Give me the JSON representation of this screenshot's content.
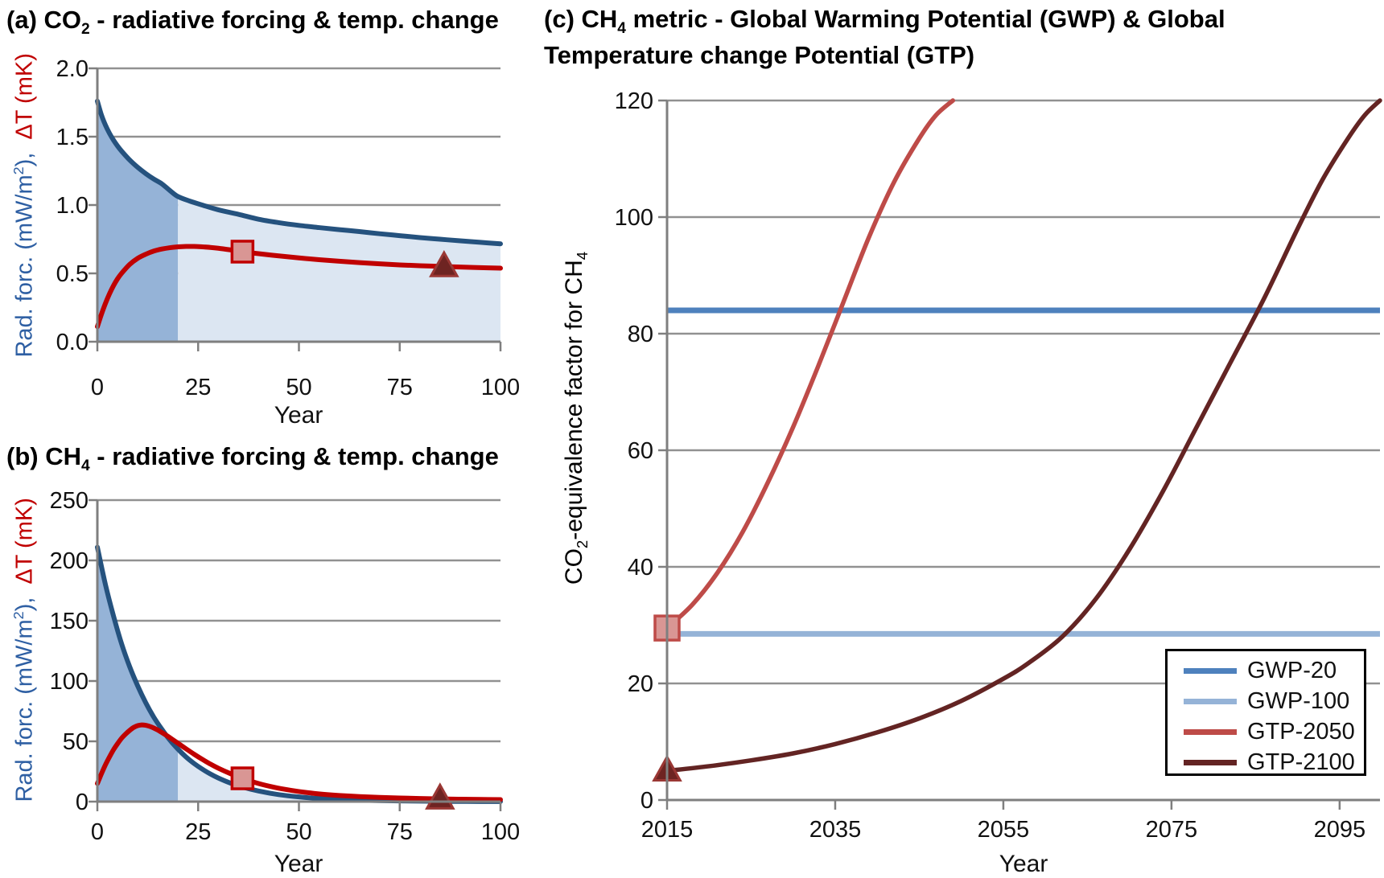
{
  "colors": {
    "navy": "#25527E",
    "red": "#C00000",
    "dark_fill": "#95B3D7",
    "light_fill": "#DCE6F2",
    "gwp20": "#4E81BD",
    "gwp100": "#95B3D7",
    "gtp2050": "#BE4B48",
    "gtp2100": "#632423",
    "grid": "#919191",
    "axis": "#7F7F7F",
    "tick_text": "#111111",
    "ylabel_blue": "#2E5FA3",
    "ylabel_red": "#C00000",
    "square_fill": "#D99694",
    "triangle_fill": "#6E2422",
    "triangle_stroke": "#9A3734"
  },
  "panel_a": {
    "title": {
      "pre": "(a) CO",
      "sub": "2",
      "post": " - radiative forcing & temp. change"
    },
    "ylabel": {
      "blue_pre": "Rad. forc. (mW/m",
      "blue_sup": "2",
      "blue_post": "),",
      "red": "ΔT (mK)"
    },
    "xlabel": "Year"
  },
  "panel_b": {
    "title": {
      "pre": "(b) CH",
      "sub": "4",
      "post": " - radiative forcing & temp. change"
    },
    "ylabel": {
      "blue_pre": "Rad. forc. (mW/m",
      "blue_sup": "2",
      "blue_post": "),",
      "red": "ΔT (mK)"
    },
    "xlabel": "Year"
  },
  "panel_c": {
    "title": {
      "pre": "(c) CH",
      "sub": "4",
      "post": " metric - Global Warming Potential (GWP) & Global",
      "line2": "Temperature change Potential (GTP)"
    },
    "ylabel": {
      "pre": "CO",
      "sub1": "2",
      "mid": "-equivalence factor for CH",
      "sub2": "4"
    },
    "xlabel": "Year",
    "legend": {
      "position": "lower right",
      "items": [
        {
          "label": "GWP-20",
          "color": "#4E81BD"
        },
        {
          "label": "GWP-100",
          "color": "#95B3D7"
        },
        {
          "label": "GTP-2050",
          "color": "#BE4B48"
        },
        {
          "label": "GTP-2100",
          "color": "#632423"
        }
      ]
    }
  },
  "chart_data": [
    {
      "id": "a",
      "type": "line",
      "title": "(a) CO₂ - radiative forcing & temp. change",
      "xlabel": "Year",
      "ylabel": "Rad. forc. (mW/m²), ΔT (mK)",
      "xlim": [
        0,
        100
      ],
      "ylim": [
        0,
        2
      ],
      "xticks": [
        "0",
        "25",
        "50",
        "75",
        "100"
      ],
      "yticks": [
        "0.0",
        "0.5",
        "1.0",
        "1.5",
        "2.0"
      ],
      "grid": true,
      "shading": {
        "under_series": "CO2 rad. forc.",
        "split_x": 20,
        "dark": "dark_fill",
        "light": "light_fill"
      },
      "series": [
        {
          "name": "CO2 rad. forc.",
          "color": "navy",
          "width": 6,
          "points": [
            [
              0,
              1.76
            ],
            [
              1,
              1.66
            ],
            [
              2,
              1.585
            ],
            [
              3,
              1.525
            ],
            [
              4,
              1.475
            ],
            [
              5,
              1.432
            ],
            [
              6,
              1.395
            ],
            [
              8,
              1.33
            ],
            [
              10,
              1.276
            ],
            [
              12,
              1.23
            ],
            [
              14,
              1.19
            ],
            [
              16,
              1.155
            ],
            [
              18,
              1.106
            ],
            [
              20,
              1.062
            ],
            [
              23,
              1.028
            ],
            [
              26,
              1.0
            ],
            [
              30,
              0.965
            ],
            [
              35,
              0.932
            ],
            [
              40,
              0.896
            ],
            [
              45,
              0.871
            ],
            [
              50,
              0.851
            ],
            [
              55,
              0.835
            ],
            [
              60,
              0.82
            ],
            [
              65,
              0.806
            ],
            [
              70,
              0.79
            ],
            [
              75,
              0.776
            ],
            [
              80,
              0.762
            ],
            [
              85,
              0.75
            ],
            [
              90,
              0.738
            ],
            [
              95,
              0.727
            ],
            [
              100,
              0.716
            ]
          ]
        },
        {
          "name": "CO2 temp. change",
          "color": "red",
          "width": 6,
          "points": [
            [
              0,
              0.11
            ],
            [
              1,
              0.2
            ],
            [
              2,
              0.28
            ],
            [
              3,
              0.35
            ],
            [
              4,
              0.41
            ],
            [
              5,
              0.46
            ],
            [
              6,
              0.5
            ],
            [
              8,
              0.565
            ],
            [
              10,
              0.61
            ],
            [
              12,
              0.64
            ],
            [
              14,
              0.663
            ],
            [
              16,
              0.678
            ],
            [
              18,
              0.688
            ],
            [
              20,
              0.694
            ],
            [
              22,
              0.697
            ],
            [
              24,
              0.697
            ],
            [
              26,
              0.694
            ],
            [
              28,
              0.69
            ],
            [
              30,
              0.684
            ],
            [
              33,
              0.672
            ],
            [
              36,
              0.659
            ],
            [
              40,
              0.644
            ],
            [
              45,
              0.628
            ],
            [
              50,
              0.613
            ],
            [
              55,
              0.6
            ],
            [
              60,
              0.589
            ],
            [
              65,
              0.579
            ],
            [
              70,
              0.57
            ],
            [
              75,
              0.562
            ],
            [
              80,
              0.556
            ],
            [
              85,
              0.551
            ],
            [
              90,
              0.546
            ],
            [
              95,
              0.542
            ],
            [
              100,
              0.538
            ]
          ]
        }
      ],
      "markers": [
        {
          "shape": "square",
          "x": 36,
          "y": 0.659,
          "fill": "square_fill",
          "stroke": "red",
          "size": 26
        },
        {
          "shape": "triangle",
          "x": 86,
          "y": 0.55,
          "fill": "triangle_fill",
          "stroke": "triangle_stroke",
          "size": 28
        }
      ]
    },
    {
      "id": "b",
      "type": "line",
      "title": "(b) CH₄ - radiative forcing & temp. change",
      "xlabel": "Year",
      "ylabel": "Rad. forc. (mW/m²), ΔT (mK)",
      "xlim": [
        0,
        100
      ],
      "ylim": [
        0,
        250
      ],
      "xticks": [
        "0",
        "25",
        "50",
        "75",
        "100"
      ],
      "yticks": [
        "0",
        "50",
        "100",
        "150",
        "200",
        "250"
      ],
      "grid": true,
      "shading": {
        "under_series": "CH4 rad. forc.",
        "split_x": 20,
        "dark": "dark_fill",
        "light": "light_fill"
      },
      "series": [
        {
          "name": "CH4 rad. forc.",
          "color": "navy",
          "width": 6,
          "points": [
            [
              0,
              211
            ],
            [
              2,
              180
            ],
            [
              4,
              154
            ],
            [
              6,
              131
            ],
            [
              8,
              112
            ],
            [
              10,
              96
            ],
            [
              12,
              82
            ],
            [
              14,
              70
            ],
            [
              16,
              60
            ],
            [
              18,
              51
            ],
            [
              20,
              43.5
            ],
            [
              22,
              37
            ],
            [
              24,
              31.6
            ],
            [
              26,
              27
            ],
            [
              28,
              23
            ],
            [
              30,
              19.6
            ],
            [
              33,
              15.4
            ],
            [
              36,
              12.1
            ],
            [
              40,
              8.8
            ],
            [
              45,
              5.8
            ],
            [
              50,
              3.9
            ],
            [
              55,
              2.6
            ],
            [
              60,
              1.7
            ],
            [
              65,
              1.2
            ],
            [
              70,
              0.8
            ],
            [
              75,
              0.55
            ],
            [
              80,
              0.38
            ],
            [
              85,
              0.26
            ],
            [
              90,
              0.18
            ],
            [
              95,
              0.12
            ],
            [
              100,
              0.08
            ]
          ]
        },
        {
          "name": "CH4 temp. change",
          "color": "red",
          "width": 6,
          "points": [
            [
              0,
              15
            ],
            [
              1,
              23
            ],
            [
              2,
              30.5
            ],
            [
              3,
              37
            ],
            [
              4,
              43
            ],
            [
              5,
              48
            ],
            [
              6,
              52.5
            ],
            [
              7,
              56
            ],
            [
              8,
              59
            ],
            [
              9,
              61.5
            ],
            [
              10,
              63
            ],
            [
              11,
              63.6
            ],
            [
              12,
              63.3
            ],
            [
              13,
              62.4
            ],
            [
              14,
              61
            ],
            [
              15,
              59.3
            ],
            [
              16,
              57.3
            ],
            [
              17,
              55.2
            ],
            [
              18,
              53
            ],
            [
              19,
              50.7
            ],
            [
              20,
              48.4
            ],
            [
              22,
              43.8
            ],
            [
              24,
              39.3
            ],
            [
              26,
              35.1
            ],
            [
              28,
              31.2
            ],
            [
              30,
              27.7
            ],
            [
              33,
              23.2
            ],
            [
              36,
              19.3
            ],
            [
              40,
              15
            ],
            [
              44,
              11.8
            ],
            [
              48,
              9.4
            ],
            [
              52,
              7.5
            ],
            [
              56,
              6.1
            ],
            [
              60,
              5.1
            ],
            [
              65,
              4.2
            ],
            [
              70,
              3.5
            ],
            [
              75,
              3
            ],
            [
              80,
              2.6
            ],
            [
              85,
              2.25
            ],
            [
              90,
              2
            ],
            [
              95,
              1.8
            ],
            [
              100,
              1.65
            ]
          ]
        }
      ],
      "markers": [
        {
          "shape": "square",
          "x": 36,
          "y": 19.3,
          "fill": "square_fill",
          "stroke": "red",
          "size": 26
        },
        {
          "shape": "triangle",
          "x": 85,
          "y": 2.25,
          "fill": "triangle_fill",
          "stroke": "triangle_stroke",
          "size": 28
        }
      ]
    },
    {
      "id": "c",
      "type": "line",
      "title": "(c) CH₄ metric - Global Warming Potential (GWP) & Global Temperature change Potential (GTP)",
      "xlabel": "Year",
      "ylabel": "CO₂-equivalence factor for CH₄",
      "xlim": [
        2015,
        2099.8
      ],
      "ylim": [
        0,
        120
      ],
      "xticks": [
        "2015",
        "2035",
        "2055",
        "2075",
        "2095"
      ],
      "yticks": [
        "0",
        "20",
        "40",
        "60",
        "80",
        "100",
        "120"
      ],
      "grid": true,
      "legend_position": "lower right",
      "series": [
        {
          "name": "GWP-20",
          "color": "gwp20",
          "width": 7,
          "points": [
            [
              2015,
              84
            ],
            [
              2099.8,
              84
            ]
          ]
        },
        {
          "name": "GWP-100",
          "color": "gwp100",
          "width": 7,
          "points": [
            [
              2015,
              28.5
            ],
            [
              2099.8,
              28.5
            ]
          ]
        },
        {
          "name": "GTP-2050",
          "color": "gtp2050",
          "width": 5.5,
          "points": [
            [
              2015,
              29.5
            ],
            [
              2018,
              33.5
            ],
            [
              2021,
              39
            ],
            [
              2024,
              46
            ],
            [
              2027,
              54.5
            ],
            [
              2030,
              64
            ],
            [
              2033,
              74.5
            ],
            [
              2036,
              85.5
            ],
            [
              2039,
              96.5
            ],
            [
              2042,
              106
            ],
            [
              2045,
              113.5
            ],
            [
              2047,
              117.5
            ],
            [
              2049,
              120
            ]
          ]
        },
        {
          "name": "GTP-2100",
          "color": "gtp2100",
          "width": 5.5,
          "points": [
            [
              2015,
              5
            ],
            [
              2020,
              5.8
            ],
            [
              2025,
              6.8
            ],
            [
              2030,
              8
            ],
            [
              2035,
              9.6
            ],
            [
              2040,
              11.6
            ],
            [
              2045,
              14
            ],
            [
              2050,
              17
            ],
            [
              2055,
              20.8
            ],
            [
              2058,
              23.5
            ],
            [
              2062,
              28
            ],
            [
              2066,
              34.5
            ],
            [
              2070,
              43
            ],
            [
              2074,
              53
            ],
            [
              2078,
              64
            ],
            [
              2082,
              75
            ],
            [
              2086,
              86
            ],
            [
              2090,
              98
            ],
            [
              2093,
              106.5
            ],
            [
              2096,
              113.5
            ],
            [
              2098,
              117.5
            ],
            [
              2099.8,
              120
            ]
          ]
        }
      ],
      "markers": [
        {
          "shape": "square",
          "x": 2015,
          "y": 29.5,
          "fill": "square_fill",
          "stroke": "gtp2050",
          "size": 30
        },
        {
          "shape": "triangle",
          "x": 2015,
          "y": 5,
          "fill": "triangle_fill",
          "stroke": "triangle_stroke",
          "size": 28
        }
      ]
    }
  ]
}
